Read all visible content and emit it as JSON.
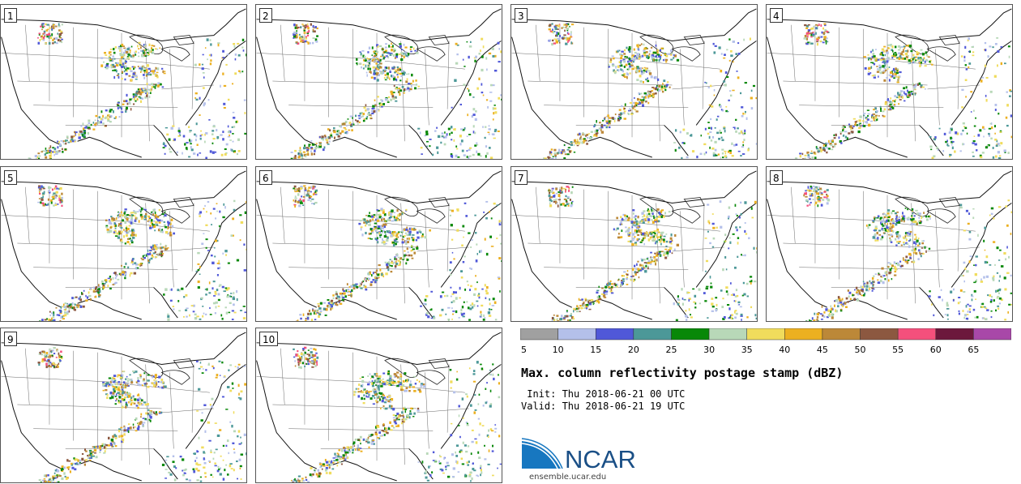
{
  "panels": [
    "1",
    "2",
    "3",
    "4",
    "5",
    "6",
    "7",
    "8",
    "9",
    "10"
  ],
  "colorbar": {
    "ticks": [
      "5",
      "10",
      "15",
      "20",
      "25",
      "30",
      "35",
      "40",
      "45",
      "50",
      "55",
      "60",
      "65"
    ],
    "colors": [
      "#a0a0a0",
      "#b4c0ea",
      "#5058d8",
      "#4c9898",
      "#088808",
      "#b8d8b8",
      "#f0dc5c",
      "#ecb020",
      "#bc8838",
      "#8c5840",
      "#f4507c",
      "#6c183c",
      "#a848a8"
    ]
  },
  "title": "Max. column reflectivity postage stamp (dBZ)",
  "init": " Init: Thu 2018-06-21 00 UTC",
  "valid": "Valid: Thu 2018-06-21 19 UTC",
  "logo": {
    "text": "NCAR",
    "color": "#1a4f86"
  },
  "url": "ensemble.ucar.edu"
}
